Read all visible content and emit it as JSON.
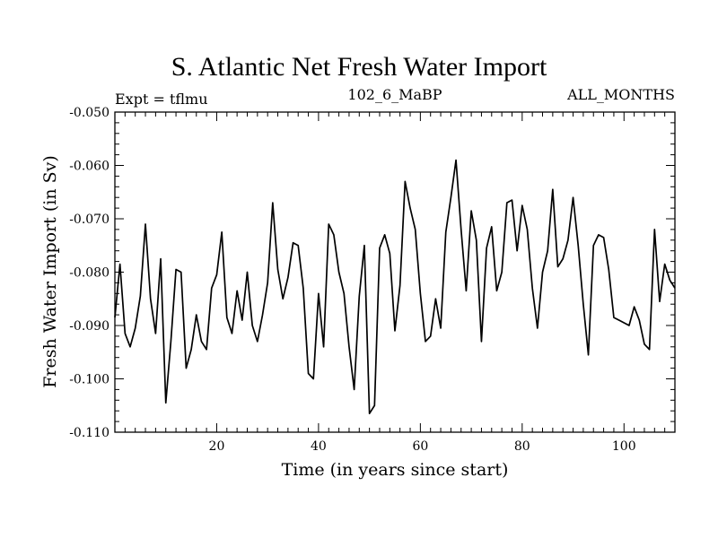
{
  "chart_data": {
    "type": "line",
    "title": "S. Atlantic Net Fresh Water Import",
    "subtitle": "102_6_MaBP",
    "expt_label": "Expt = tflmu",
    "months_label": "ALL_MONTHS",
    "xlabel": "Time (in years since start)",
    "ylabel": "Fresh Water Import (in Sv)",
    "xlim": [
      0,
      110
    ],
    "ylim": [
      -0.11,
      -0.05
    ],
    "x_major_ticks": [
      20,
      40,
      60,
      80,
      100
    ],
    "x_tick_labels": [
      "20",
      "40",
      "60",
      "80",
      "100"
    ],
    "y_major_ticks": [
      -0.11,
      -0.1,
      -0.09,
      -0.08,
      -0.07,
      -0.06,
      -0.05
    ],
    "y_tick_labels": [
      "-0.110",
      "-0.100",
      "-0.090",
      "-0.080",
      "-0.070",
      "-0.060",
      "-0.050"
    ],
    "grid": false,
    "series": [
      {
        "name": "Fresh Water Import",
        "x": [
          0,
          1,
          2,
          3,
          4,
          5,
          6,
          7,
          8,
          9,
          10,
          11,
          12,
          13,
          14,
          15,
          16,
          17,
          18,
          19,
          20,
          21,
          22,
          23,
          24,
          25,
          26,
          27,
          28,
          29,
          30,
          31,
          32,
          33,
          34,
          35,
          36,
          37,
          38,
          39,
          40,
          41,
          42,
          43,
          44,
          45,
          46,
          47,
          48,
          49,
          50,
          51,
          52,
          53,
          54,
          55,
          56,
          57,
          58,
          59,
          60,
          61,
          62,
          63,
          64,
          65,
          66,
          67,
          68,
          69,
          70,
          71,
          72,
          73,
          74,
          75,
          76,
          77,
          78,
          79,
          80,
          81,
          82,
          83,
          84,
          85,
          86,
          87,
          88,
          89,
          90,
          91,
          92,
          93,
          94,
          95,
          96,
          97,
          98,
          99,
          100,
          101,
          102,
          103,
          104,
          105,
          106,
          107,
          108,
          109,
          110
        ],
        "values": [
          -0.0885,
          -0.0785,
          -0.0915,
          -0.094,
          -0.0905,
          -0.0845,
          -0.071,
          -0.085,
          -0.0915,
          -0.0775,
          -0.1045,
          -0.093,
          -0.0795,
          -0.08,
          -0.098,
          -0.0945,
          -0.088,
          -0.093,
          -0.0945,
          -0.083,
          -0.0805,
          -0.0725,
          -0.0885,
          -0.0915,
          -0.0835,
          -0.089,
          -0.08,
          -0.09,
          -0.093,
          -0.088,
          -0.082,
          -0.067,
          -0.0795,
          -0.085,
          -0.081,
          -0.0745,
          -0.075,
          -0.083,
          -0.099,
          -0.1,
          -0.084,
          -0.094,
          -0.071,
          -0.073,
          -0.08,
          -0.084,
          -0.094,
          -0.102,
          -0.0845,
          -0.075,
          -0.1065,
          -0.105,
          -0.0755,
          -0.073,
          -0.0765,
          -0.091,
          -0.0825,
          -0.063,
          -0.068,
          -0.072,
          -0.084,
          -0.093,
          -0.092,
          -0.085,
          -0.0905,
          -0.0725,
          -0.066,
          -0.059,
          -0.072,
          -0.0835,
          -0.0685,
          -0.074,
          -0.093,
          -0.0755,
          -0.0715,
          -0.0835,
          -0.08,
          -0.067,
          -0.0665,
          -0.076,
          -0.0675,
          -0.072,
          -0.083,
          -0.0905,
          -0.08,
          -0.076,
          -0.0645,
          -0.079,
          -0.0775,
          -0.074,
          -0.066,
          -0.075,
          -0.086,
          -0.0955,
          -0.075,
          -0.073,
          -0.0735,
          -0.0795,
          -0.0885,
          -0.089,
          -0.0895,
          -0.09,
          -0.0865,
          -0.089,
          -0.0935,
          -0.0945,
          -0.072,
          -0.0855,
          -0.0785,
          -0.0815,
          -0.083
        ]
      }
    ]
  }
}
